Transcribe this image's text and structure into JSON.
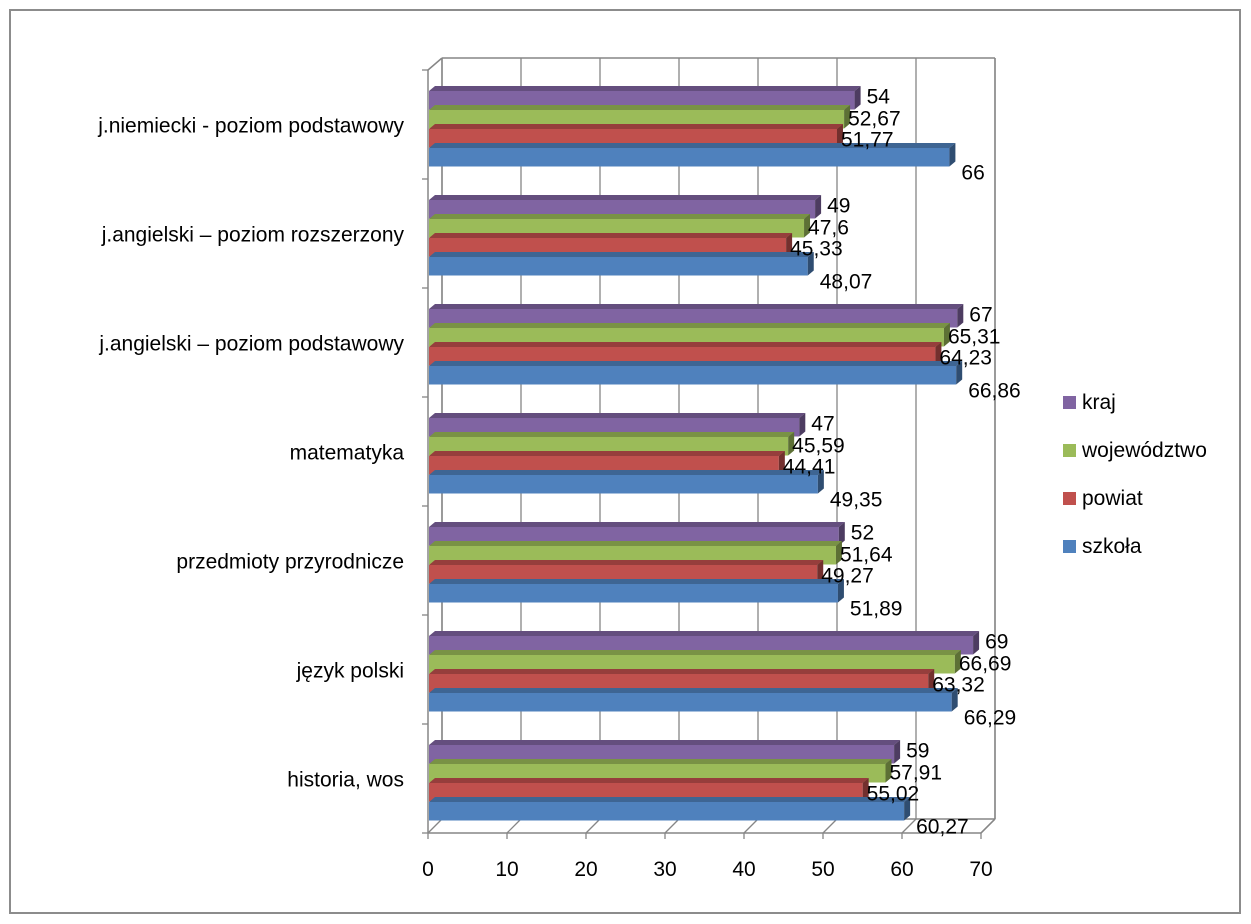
{
  "chart_data": {
    "type": "bar",
    "orientation": "horizontal",
    "three_d": true,
    "categories": [
      "historia, wos",
      "język polski",
      "przedmioty przyrodnicze",
      "matematyka",
      "j.angielski – poziom podstawowy",
      "j.angielski – poziom rozszerzony",
      "j.niemiecki - poziom podstawowy"
    ],
    "series": [
      {
        "name": "szkoła",
        "color": "#4f81bd",
        "values": [
          60.27,
          66.29,
          51.89,
          49.35,
          66.86,
          48.07,
          66
        ],
        "labels": [
          "60,27",
          "66,29",
          "51,89",
          "49,35",
          "66,86",
          "48,07",
          "66"
        ]
      },
      {
        "name": "powiat",
        "color": "#c0504d",
        "values": [
          55.02,
          63.32,
          49.27,
          44.41,
          64.23,
          45.33,
          51.77
        ],
        "labels": [
          "55,02",
          "63,32",
          "49,27",
          "44,41",
          "64,23",
          "45,33",
          "51,77"
        ]
      },
      {
        "name": "województwo",
        "color": "#9bbb59",
        "values": [
          57.91,
          66.69,
          51.64,
          45.59,
          65.31,
          47.6,
          52.67
        ],
        "labels": [
          "57,91",
          "66,69",
          "51,64",
          "45,59",
          "65,31",
          "47,6",
          "52,67"
        ]
      },
      {
        "name": "kraj",
        "color": "#8064a2",
        "values": [
          59,
          69,
          52,
          47,
          67,
          49,
          54
        ],
        "labels": [
          "59",
          "69",
          "52",
          "47",
          "67",
          "49",
          "54"
        ]
      }
    ],
    "x_ticks": [
      "0",
      "10",
      "20",
      "30",
      "40",
      "50",
      "60",
      "70"
    ],
    "xlim": [
      0,
      70
    ],
    "grid": true,
    "legend_position": "right",
    "legend_order": [
      "kraj",
      "województwo",
      "powiat",
      "szkoła"
    ],
    "title": "",
    "xlabel": "",
    "ylabel": ""
  }
}
